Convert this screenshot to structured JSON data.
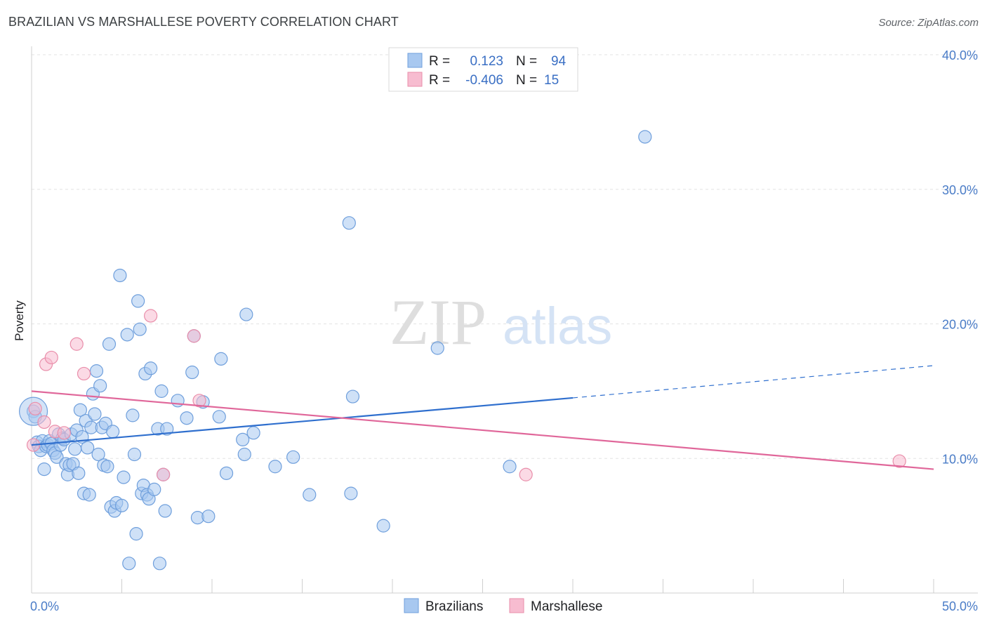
{
  "title": "BRAZILIAN VS MARSHALLESE POVERTY CORRELATION CHART",
  "source": "Source: ZipAtlas.com",
  "watermark": {
    "zip": "ZIP",
    "atlas": "atlas"
  },
  "colors": {
    "blue_fill": "#a8c8f0",
    "blue_stroke": "#6f9fdc",
    "blue_line": "#2f6fce",
    "pink_fill": "#f7bcd0",
    "pink_stroke": "#e98eaa",
    "pink_line": "#e0679a",
    "tick_text": "#4a7cc7"
  },
  "legend": {
    "rows": [
      {
        "r_label": "R =",
        "r_value": "0.123",
        "n_label": "N =",
        "n_value": "94"
      },
      {
        "r_label": "R =",
        "r_value": "-0.406",
        "n_label": "N =",
        "n_value": "15"
      }
    ]
  },
  "chart_data": {
    "type": "scatter",
    "title": "BRAZILIAN VS MARSHALLESE POVERTY CORRELATION CHART",
    "xlabel": "",
    "ylabel": "Poverty",
    "xlim": [
      0,
      50
    ],
    "ylim": [
      0,
      40
    ],
    "x_tick_labels": [
      "0.0%",
      "50.0%"
    ],
    "y_ticks": [
      10,
      20,
      30,
      40
    ],
    "y_tick_labels": [
      "10.0%",
      "20.0%",
      "30.0%",
      "40.0%"
    ],
    "grid": true,
    "legend_position": "top-center",
    "series": [
      {
        "name": "Brazilians",
        "trend": {
          "x_start": 0,
          "y_start": 11.0,
          "x_end": 30,
          "y_end": 14.5,
          "dashed_to_x": 50,
          "dashed_to_y": 16.9
        },
        "points": [
          [
            0.1,
            13.5
          ],
          [
            0.2,
            13.1
          ],
          [
            0.3,
            11.2
          ],
          [
            0.4,
            10.9
          ],
          [
            0.5,
            10.6
          ],
          [
            0.6,
            11.3
          ],
          [
            0.7,
            9.2
          ],
          [
            0.8,
            10.9
          ],
          [
            0.9,
            11.0
          ],
          [
            1.0,
            11.3
          ],
          [
            1.1,
            11.1
          ],
          [
            1.2,
            10.6
          ],
          [
            1.3,
            10.4
          ],
          [
            1.4,
            10.1
          ],
          [
            1.5,
            11.8
          ],
          [
            1.6,
            11.0
          ],
          [
            1.7,
            11.5
          ],
          [
            1.8,
            11.4
          ],
          [
            1.9,
            9.6
          ],
          [
            2.0,
            8.8
          ],
          [
            2.1,
            9.5
          ],
          [
            2.2,
            11.8
          ],
          [
            2.3,
            9.6
          ],
          [
            2.4,
            10.7
          ],
          [
            2.5,
            12.1
          ],
          [
            2.6,
            8.9
          ],
          [
            2.7,
            13.6
          ],
          [
            2.8,
            11.6
          ],
          [
            2.9,
            7.4
          ],
          [
            3.0,
            12.8
          ],
          [
            3.1,
            10.8
          ],
          [
            3.2,
            7.3
          ],
          [
            3.3,
            12.3
          ],
          [
            3.4,
            14.8
          ],
          [
            3.5,
            13.3
          ],
          [
            3.6,
            16.5
          ],
          [
            3.7,
            10.3
          ],
          [
            3.8,
            15.4
          ],
          [
            3.9,
            12.3
          ],
          [
            4.0,
            9.5
          ],
          [
            4.1,
            12.6
          ],
          [
            4.2,
            9.4
          ],
          [
            4.3,
            18.5
          ],
          [
            4.4,
            6.4
          ],
          [
            4.5,
            12.0
          ],
          [
            4.6,
            6.1
          ],
          [
            4.7,
            6.7
          ],
          [
            4.9,
            23.6
          ],
          [
            5.0,
            6.5
          ],
          [
            5.1,
            8.6
          ],
          [
            5.3,
            19.2
          ],
          [
            5.4,
            2.2
          ],
          [
            5.6,
            13.2
          ],
          [
            5.7,
            10.3
          ],
          [
            5.8,
            4.4
          ],
          [
            5.9,
            21.7
          ],
          [
            6.0,
            19.6
          ],
          [
            6.1,
            7.4
          ],
          [
            6.2,
            8.0
          ],
          [
            6.3,
            16.3
          ],
          [
            6.4,
            7.3
          ],
          [
            6.5,
            7.0
          ],
          [
            6.6,
            16.7
          ],
          [
            6.8,
            7.7
          ],
          [
            7.0,
            12.2
          ],
          [
            7.1,
            2.2
          ],
          [
            7.2,
            15.0
          ],
          [
            7.3,
            8.8
          ],
          [
            7.4,
            6.1
          ],
          [
            7.5,
            12.2
          ],
          [
            8.1,
            14.3
          ],
          [
            8.6,
            13.0
          ],
          [
            8.9,
            16.4
          ],
          [
            9.0,
            19.1
          ],
          [
            9.2,
            5.6
          ],
          [
            9.5,
            14.2
          ],
          [
            9.8,
            5.7
          ],
          [
            10.4,
            13.1
          ],
          [
            10.5,
            17.4
          ],
          [
            10.8,
            8.9
          ],
          [
            11.7,
            11.4
          ],
          [
            11.8,
            10.3
          ],
          [
            11.9,
            20.7
          ],
          [
            12.3,
            11.9
          ],
          [
            13.5,
            9.4
          ],
          [
            14.5,
            10.1
          ],
          [
            15.4,
            7.3
          ],
          [
            17.6,
            27.5
          ],
          [
            17.7,
            7.4
          ],
          [
            17.8,
            14.6
          ],
          [
            19.5,
            5.0
          ],
          [
            22.5,
            18.2
          ],
          [
            26.5,
            9.4
          ],
          [
            34.0,
            33.9
          ]
        ],
        "large_point": [
          0.1,
          13.5
        ]
      },
      {
        "name": "Marshallese",
        "trend": {
          "x_start": 0,
          "y_start": 15.0,
          "x_end": 50,
          "y_end": 9.2
        },
        "points": [
          [
            0.1,
            11.0
          ],
          [
            0.2,
            13.7
          ],
          [
            0.7,
            12.7
          ],
          [
            0.8,
            17.0
          ],
          [
            1.1,
            17.5
          ],
          [
            1.3,
            12.0
          ],
          [
            1.8,
            11.9
          ],
          [
            2.5,
            18.5
          ],
          [
            2.9,
            16.3
          ],
          [
            6.6,
            20.6
          ],
          [
            7.3,
            8.8
          ],
          [
            9.0,
            19.1
          ],
          [
            9.3,
            14.3
          ],
          [
            27.4,
            8.8
          ],
          [
            48.1,
            9.8
          ]
        ]
      }
    ]
  }
}
